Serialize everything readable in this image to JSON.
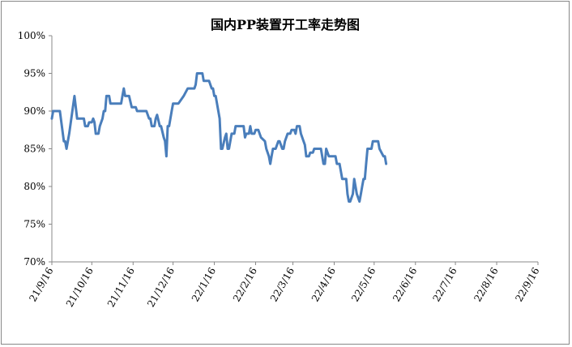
{
  "chart_data": {
    "type": "line",
    "title": "国内PP装置开工率走势图",
    "xlabel": "",
    "ylabel": "",
    "ylim": [
      70,
      100
    ],
    "y_ticks": [
      "70%",
      "75%",
      "80%",
      "85%",
      "90%",
      "95%",
      "100%"
    ],
    "x_ticks": [
      "21/9/16",
      "21/10/16",
      "21/11/16",
      "21/12/16",
      "22/1/16",
      "22/2/16",
      "22/3/16",
      "22/4/16",
      "22/5/16",
      "22/6/16",
      "22/7/16",
      "22/8/16",
      "22/9/16"
    ],
    "grid": false,
    "legend": "none",
    "line_color": "#4a7ebb",
    "series": [
      {
        "name": "",
        "points": [
          [
            "2021-09-16",
            89
          ],
          [
            "2021-09-17",
            90
          ],
          [
            "2021-09-22",
            90
          ],
          [
            "2021-09-25",
            86
          ],
          [
            "2021-09-26",
            86
          ],
          [
            "2021-09-27",
            85
          ],
          [
            "2021-09-29",
            87
          ],
          [
            "2021-10-03",
            92
          ],
          [
            "2021-10-05",
            89
          ],
          [
            "2021-10-10",
            89
          ],
          [
            "2021-10-11",
            88
          ],
          [
            "2021-10-13",
            88
          ],
          [
            "2021-10-14",
            88.5
          ],
          [
            "2021-10-16",
            88.5
          ],
          [
            "2021-10-17",
            89
          ],
          [
            "2021-10-18",
            88.5
          ],
          [
            "2021-10-19",
            87
          ],
          [
            "2021-10-21",
            87
          ],
          [
            "2021-10-22",
            88
          ],
          [
            "2021-10-24",
            89
          ],
          [
            "2021-10-25",
            90
          ],
          [
            "2021-10-26",
            90
          ],
          [
            "2021-10-27",
            92
          ],
          [
            "2021-10-29",
            92
          ],
          [
            "2021-10-30",
            91
          ],
          [
            "2021-11-07",
            91
          ],
          [
            "2021-11-08",
            92
          ],
          [
            "2021-11-09",
            93
          ],
          [
            "2021-11-10",
            92
          ],
          [
            "2021-11-13",
            92
          ],
          [
            "2021-11-15",
            90.5
          ],
          [
            "2021-11-18",
            90.5
          ],
          [
            "2021-11-19",
            90
          ],
          [
            "2021-11-26",
            90
          ],
          [
            "2021-11-28",
            89
          ],
          [
            "2021-11-29",
            89
          ],
          [
            "2021-11-30",
            88
          ],
          [
            "2021-12-02",
            88
          ],
          [
            "2021-12-03",
            89
          ],
          [
            "2021-12-04",
            89.5
          ],
          [
            "2021-12-06",
            88
          ],
          [
            "2021-12-07",
            88
          ],
          [
            "2021-12-09",
            86.5
          ],
          [
            "2021-12-10",
            86
          ],
          [
            "2021-12-11",
            84
          ],
          [
            "2021-12-12",
            88
          ],
          [
            "2021-12-13",
            88
          ],
          [
            "2021-12-15",
            90
          ],
          [
            "2021-12-16",
            91
          ],
          [
            "2021-12-20",
            91
          ],
          [
            "2021-12-24",
            92
          ],
          [
            "2021-12-27",
            93
          ],
          [
            "2022-01-01",
            93
          ],
          [
            "2022-01-02",
            93.5
          ],
          [
            "2022-01-03",
            95
          ],
          [
            "2022-01-07",
            95
          ],
          [
            "2022-01-08",
            94
          ],
          [
            "2022-01-12",
            94
          ],
          [
            "2022-01-14",
            93
          ],
          [
            "2022-01-15",
            93
          ],
          [
            "2022-01-16",
            92
          ],
          [
            "2022-01-17",
            92
          ],
          [
            "2022-01-20",
            89
          ],
          [
            "2022-01-21",
            85
          ],
          [
            "2022-01-22",
            85
          ],
          [
            "2022-01-24",
            86.5
          ],
          [
            "2022-01-25",
            87
          ],
          [
            "2022-01-26",
            85
          ],
          [
            "2022-01-27",
            85
          ],
          [
            "2022-01-29",
            87
          ],
          [
            "2022-01-31",
            87
          ],
          [
            "2022-02-01",
            88
          ],
          [
            "2022-02-07",
            88
          ],
          [
            "2022-02-08",
            86.5
          ],
          [
            "2022-02-09",
            87
          ],
          [
            "2022-02-11",
            87
          ],
          [
            "2022-02-12",
            88
          ],
          [
            "2022-02-13",
            87
          ],
          [
            "2022-02-15",
            87
          ],
          [
            "2022-02-16",
            87.5
          ],
          [
            "2022-02-18",
            87.5
          ],
          [
            "2022-02-20",
            86.5
          ],
          [
            "2022-02-23",
            86
          ],
          [
            "2022-02-24",
            85
          ],
          [
            "2022-02-26",
            84
          ],
          [
            "2022-02-27",
            83
          ],
          [
            "2022-02-28",
            84
          ],
          [
            "2022-03-01",
            85
          ],
          [
            "2022-03-03",
            85
          ],
          [
            "2022-03-05",
            86
          ],
          [
            "2022-03-06",
            86
          ],
          [
            "2022-03-08",
            85
          ],
          [
            "2022-03-09",
            85
          ],
          [
            "2022-03-10",
            86
          ],
          [
            "2022-03-12",
            87
          ],
          [
            "2022-03-14",
            87
          ],
          [
            "2022-03-15",
            87.5
          ],
          [
            "2022-03-17",
            87.5
          ],
          [
            "2022-03-18",
            87
          ],
          [
            "2022-03-19",
            88
          ],
          [
            "2022-03-21",
            88
          ],
          [
            "2022-03-22",
            87
          ],
          [
            "2022-03-24",
            86
          ],
          [
            "2022-03-25",
            85.5
          ],
          [
            "2022-03-26",
            84
          ],
          [
            "2022-03-28",
            84
          ],
          [
            "2022-03-29",
            84.5
          ],
          [
            "2022-03-31",
            84.5
          ],
          [
            "2022-04-01",
            85
          ],
          [
            "2022-04-06",
            85
          ],
          [
            "2022-04-08",
            83
          ],
          [
            "2022-04-09",
            83
          ],
          [
            "2022-04-10",
            85
          ],
          [
            "2022-04-12",
            84
          ],
          [
            "2022-04-17",
            84
          ],
          [
            "2022-04-18",
            83
          ],
          [
            "2022-04-20",
            83
          ],
          [
            "2022-04-22",
            81
          ],
          [
            "2022-04-25",
            81
          ],
          [
            "2022-04-26",
            79
          ],
          [
            "2022-04-27",
            78
          ],
          [
            "2022-04-28",
            78
          ],
          [
            "2022-04-30",
            79
          ],
          [
            "2022-05-01",
            81
          ],
          [
            "2022-05-02",
            80
          ],
          [
            "2022-05-03",
            79
          ],
          [
            "2022-05-05",
            78
          ],
          [
            "2022-05-06",
            79
          ],
          [
            "2022-05-07",
            80
          ],
          [
            "2022-05-08",
            81
          ],
          [
            "2022-05-09",
            81
          ],
          [
            "2022-05-10",
            83
          ],
          [
            "2022-05-11",
            85
          ],
          [
            "2022-05-14",
            85
          ],
          [
            "2022-05-15",
            86
          ],
          [
            "2022-05-19",
            86
          ],
          [
            "2022-05-20",
            85
          ],
          [
            "2022-05-23",
            84
          ],
          [
            "2022-05-24",
            84
          ],
          [
            "2022-05-25",
            83
          ]
        ]
      }
    ]
  }
}
